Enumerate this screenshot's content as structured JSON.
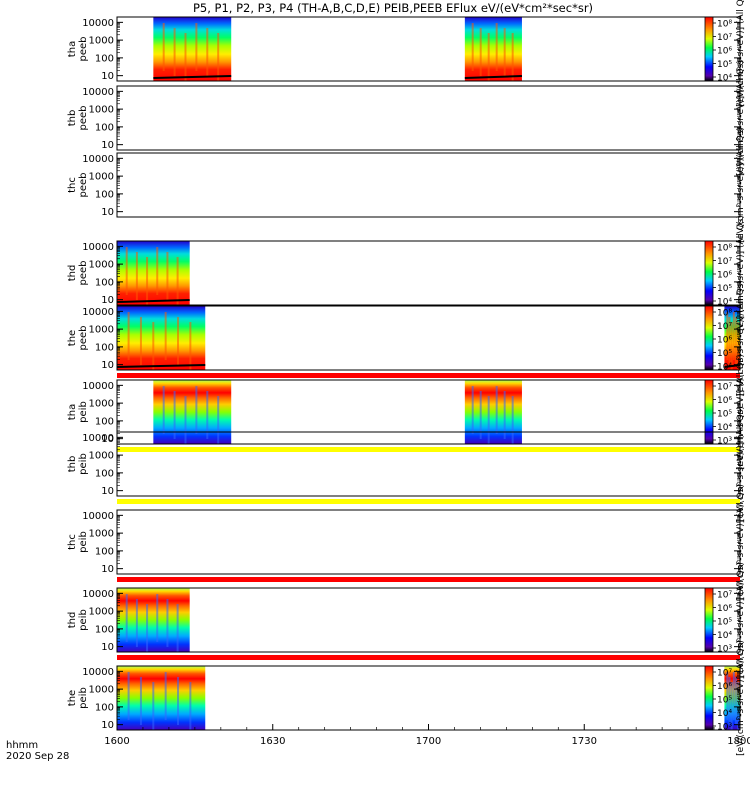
{
  "title": "P5, P1, P2, P3, P4 (TH-A,B,C,D,E) PEIB,PEEB EFlux eV/(eV*cm²*sec*sr)",
  "chart_data": {
    "type": "heatmap",
    "x_axis": {
      "tick_labels": [
        "1600",
        "1630",
        "1700",
        "1730",
        "1800"
      ],
      "unit_label": "hhmm",
      "date_label": "2020 Sep 28",
      "range_hhmm": [
        "16:00",
        "18:00"
      ]
    },
    "y_axis_ticks": [
      "10000",
      "1000",
      "100",
      "10"
    ],
    "y_scale": "log",
    "panels": [
      {
        "label": "tha peeb",
        "label_top": "tha",
        "label_bot": "peeb",
        "colorbar": true,
        "colorbar_ticks": [
          "10⁸",
          "10⁷",
          "10⁶",
          "10⁵",
          "10⁴"
        ],
        "colorbar_unit": "[eV/(cm²-s-sr-eV)] (All Qs)",
        "data_intervals": [
          [
            "16:07",
            "16:22"
          ],
          [
            "17:07",
            "17:18"
          ]
        ],
        "red_bar": false,
        "yellow_bar": false
      },
      {
        "label": "thb peeb",
        "label_top": "thb",
        "label_bot": "peeb",
        "colorbar": false,
        "colorbar_unit": "[eV/(cm²-s-sr-eV)] (All Qs)",
        "data_intervals": [],
        "red_bar": false,
        "yellow_bar": false
      },
      {
        "label": "thc peeb",
        "label_top": "thc",
        "label_bot": "peeb",
        "colorbar": false,
        "colorbar_unit": "[eV/(cm²-s-sr-eV)] (All Qs)",
        "data_intervals": [],
        "red_bar": false,
        "yellow_bar": false
      },
      {
        "label": "thd peeb",
        "label_top": "thd",
        "label_bot": "peeb",
        "colorbar": true,
        "colorbar_ticks": [
          "10⁸",
          "10⁷",
          "10⁶",
          "10⁵",
          "10⁴"
        ],
        "colorbar_unit": "[eV/(cm²-s-sr-eV)] (All Qs)",
        "data_intervals": [
          [
            "16:00",
            "16:14"
          ]
        ],
        "red_bar": false,
        "yellow_bar": false
      },
      {
        "label": "the peeb",
        "label_top": "the",
        "label_bot": "peeb",
        "colorbar": true,
        "colorbar_ticks": [
          "10⁸",
          "10⁷",
          "10⁶",
          "10⁵",
          "10⁴"
        ],
        "colorbar_unit": "[eV/(cm²-s-sr-eV)] (All Qs)",
        "data_intervals": [
          [
            "16:00",
            "16:17"
          ],
          [
            "17:57",
            "18:00"
          ]
        ],
        "red_bar": true,
        "yellow_bar": false
      },
      {
        "label": "tha peib",
        "label_top": "tha",
        "label_bot": "peib",
        "colorbar": true,
        "colorbar_ticks": [
          "10⁷",
          "10⁶",
          "10⁵",
          "10⁴",
          "10³"
        ],
        "colorbar_unit": "[eV/(cm²-s-sr-eV)] (All Qs)",
        "data_intervals": [
          [
            "16:07",
            "16:22"
          ],
          [
            "17:07",
            "17:18"
          ]
        ],
        "red_bar": false,
        "yellow_bar": true
      },
      {
        "label": "thb peib",
        "label_top": "thb",
        "label_bot": "peib",
        "colorbar": false,
        "colorbar_unit": "[eV/(cm²-s-sr-eV)] (All Qs)",
        "data_intervals": [],
        "red_bar": false,
        "yellow_bar": true
      },
      {
        "label": "thc peib",
        "label_top": "thc",
        "label_bot": "peib",
        "colorbar": false,
        "colorbar_unit": "[eV/(cm²-s-sr-eV)] (All Qs)",
        "data_intervals": [],
        "red_bar": true,
        "yellow_bar": false
      },
      {
        "label": "thd peib",
        "label_top": "thd",
        "label_bot": "peib",
        "colorbar": true,
        "colorbar_ticks": [
          "10⁷",
          "10⁶",
          "10⁵",
          "10⁴",
          "10³"
        ],
        "colorbar_unit": "[eV/(cm²-s-sr-eV)] (All Qs)",
        "data_intervals": [
          [
            "16:00",
            "16:14"
          ]
        ],
        "red_bar": true,
        "yellow_bar": false
      },
      {
        "label": "the peib",
        "label_top": "the",
        "label_bot": "peib",
        "colorbar": true,
        "colorbar_ticks": [
          "10⁷",
          "10⁶",
          "10⁵",
          "10⁴",
          "10³"
        ],
        "colorbar_unit": "[eV/(cm²-s-sr-eV)] (All Qs)",
        "data_intervals": [
          [
            "16:00",
            "16:17"
          ],
          [
            "17:57",
            "18:00"
          ]
        ],
        "red_bar": false,
        "yellow_bar": false
      }
    ],
    "colors": {
      "red_bar": "#ff0000",
      "yellow_bar": "#ffff00"
    }
  }
}
